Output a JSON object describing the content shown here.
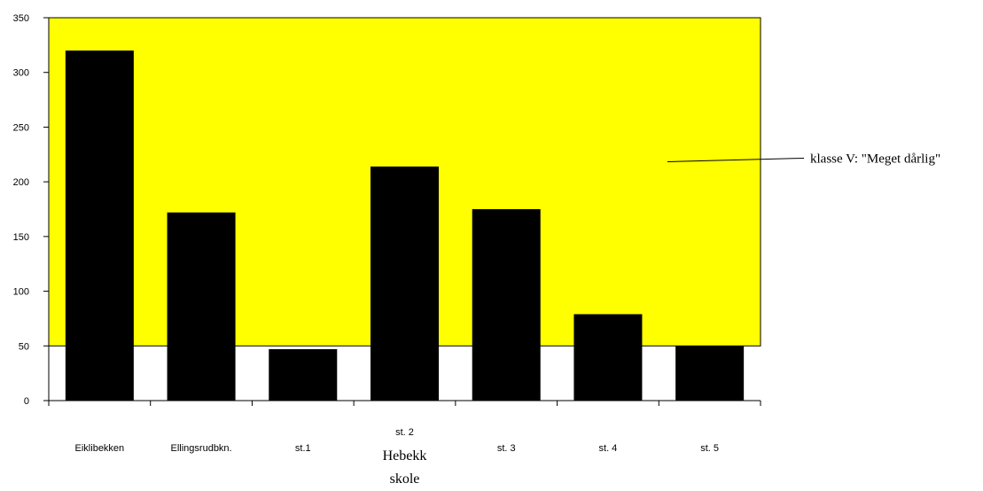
{
  "chart_data": {
    "type": "bar",
    "categories": [
      "Eiklibekken",
      "Ellingsrudbkn.",
      "st.1",
      "st. 2",
      "st. 3",
      "st. 4",
      "st. 5"
    ],
    "values": [
      320,
      172,
      47,
      214,
      175,
      79,
      50
    ],
    "category_sublabel": {
      "index": 3,
      "lines": [
        "Hebekk",
        "skole"
      ]
    },
    "ylim": [
      0,
      350
    ],
    "yticks": [
      0,
      50,
      100,
      150,
      200,
      250,
      300,
      350
    ],
    "yticklabels": [
      "0",
      "50",
      "100",
      "150",
      "200",
      "250",
      "300",
      "350"
    ],
    "title": "",
    "xlabel": "",
    "ylabel": "",
    "threshold_band": {
      "from": 50,
      "to": 350,
      "color": "#ffff00"
    },
    "annotation": {
      "text": "klasse V: \"Meget dårlig\"",
      "y_value": 220,
      "position": "right"
    },
    "bar_color": "#000000",
    "grid": false,
    "legend": "none"
  }
}
